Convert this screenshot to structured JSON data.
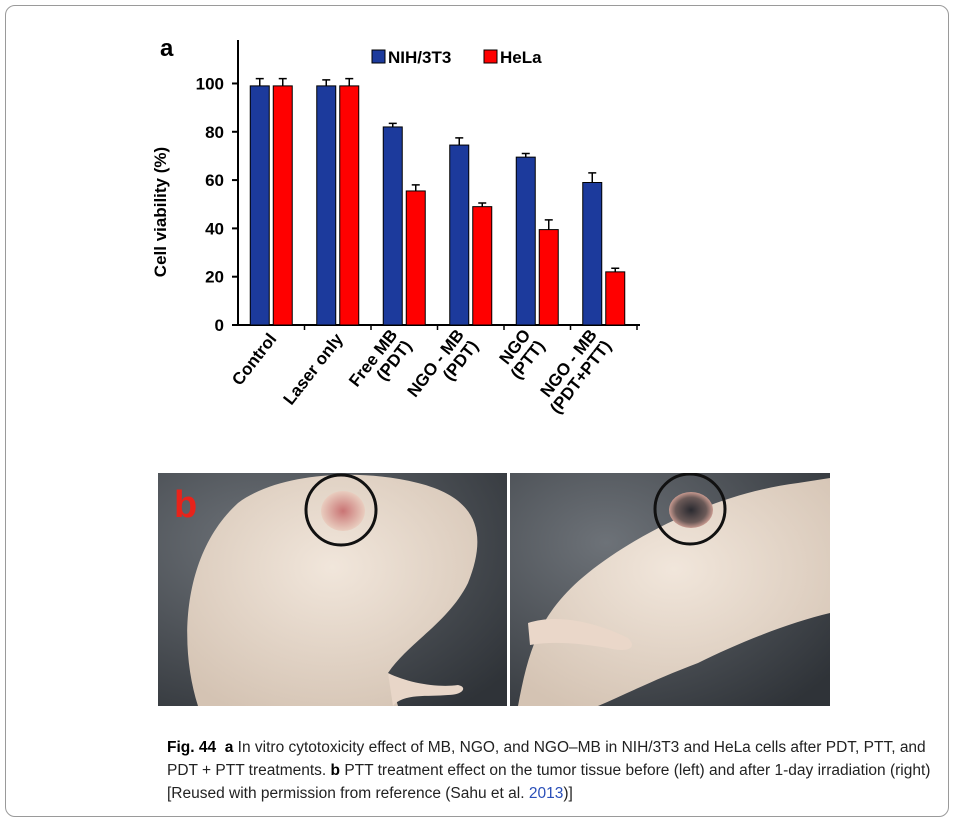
{
  "chart_data": {
    "type": "bar",
    "panel_label": "a",
    "ylabel": "Cell viability (%)",
    "categories": [
      [
        "Control"
      ],
      [
        "Laser only"
      ],
      [
        "Free MB",
        "(PDT)"
      ],
      [
        "NGO - MB",
        "(PDT)"
      ],
      [
        "NGO",
        "(PTT)"
      ],
      [
        "NGO - MB",
        "(PDT+PTT)"
      ]
    ],
    "series": [
      {
        "name": "NIH/3T3",
        "color": "#1c3a9c",
        "values": [
          99,
          99,
          82,
          74.5,
          69.5,
          59
        ],
        "errors": [
          3,
          2.5,
          1.5,
          3,
          1.5,
          4
        ]
      },
      {
        "name": "HeLa",
        "color": "#ff0000",
        "values": [
          99,
          99,
          55.5,
          49,
          39.5,
          22
        ],
        "errors": [
          3,
          3,
          2.5,
          1.5,
          4,
          1.5
        ]
      }
    ],
    "ylim": [
      0,
      118
    ],
    "yticks": [
      0,
      20,
      40,
      60,
      80,
      100
    ],
    "grid": false,
    "legend": "top"
  },
  "panel_b": {
    "label": "b"
  },
  "caption": {
    "figure_label": "Fig. 44",
    "a_label": "a",
    "a_text": "In vitro cytotoxicity effect of MB, NGO, and NGO–MB in NIH/3T3 and HeLa cells after PDT, PTT, and PDT + PTT treatments.",
    "b_label": "b",
    "b_text": "PTT treatment effect on the tumor tissue before (left) and after 1-day irradiation (right) [Reused with permission from reference (Sahu et al.",
    "citation_year": "2013",
    "closing": ")]"
  }
}
